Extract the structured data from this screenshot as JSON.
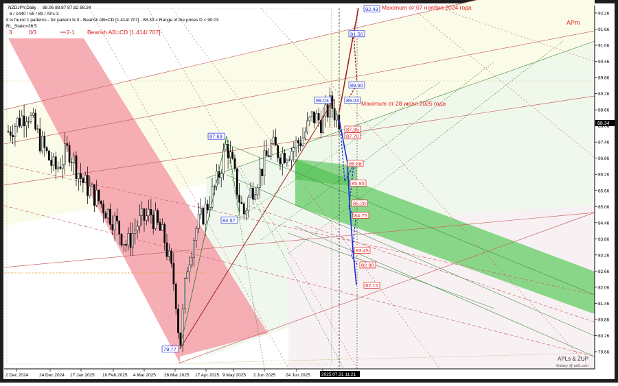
{
  "chart_data": {
    "type": "candlestick",
    "title": "NZDJPY,Daily",
    "ohlc_header": "88.06 88.87 87.82 88.34",
    "info_lines": [
      "6 / 1440 / 55 / 89 / APs-3",
      "It is found 1 patterns  -  for pattern N 0 - Bearish AB=CD [1.414/.707] - 88.33 < Range of the prices D < 90.03",
      "RL_Static=36.5"
    ],
    "pattern_counts": [
      "3",
      "0/3",
      "2-1"
    ],
    "pattern_label": "Bearish AB=CD [1.414/.707]",
    "brand": "APm",
    "watermark": [
      "APLs & ZUP",
      "Galaxy @ mt5.com"
    ],
    "price_label": "88.34",
    "y_ticks": [
      "92.26",
      "91.66",
      "91.06",
      "90.46",
      "89.86",
      "89.26",
      "88.66",
      "88.06",
      "87.46",
      "86.86",
      "86.26",
      "85.66",
      "85.06",
      "84.46",
      "83.86",
      "83.26",
      "82.66",
      "82.06",
      "81.46",
      "80.86",
      "80.26",
      "79.66"
    ],
    "ylim": [
      79.66,
      92.26
    ],
    "x_ticks": [
      "2 Dec 2024",
      "24 Dec 2024",
      "17 Jan 2025",
      "10 Feb 2025",
      "4 Mar 2025",
      "26 Mar 2025",
      "17 Apr 2025",
      "9 May 2025",
      "2 Jun 2025",
      "24 Jun 2025",
      "2025.07.31 11:21"
    ],
    "annotations": [
      {
        "text": "Maximum от 07 ноября 2024 года",
        "price": 92.43
      },
      {
        "text": "Maximum от 28 июля 2025 года",
        "price": 89.03
      }
    ],
    "pivots": [
      {
        "label": "87.69",
        "price": 87.69
      },
      {
        "label": "84.57",
        "price": 84.57
      },
      {
        "label": "79.77",
        "price": 79.77
      },
      {
        "label": "89.03",
        "price": 89.03
      }
    ],
    "target_levels_upper": [
      {
        "label": "92.43",
        "price": 92.43
      },
      {
        "label": "91.50",
        "price": 91.5
      },
      {
        "label": "89.60",
        "price": 89.6
      },
      {
        "label": "89.03",
        "price": 89.03
      }
    ],
    "target_levels_lower": [
      {
        "label": "87.95",
        "price": 87.95
      },
      {
        "label": "87.70",
        "price": 87.7
      },
      {
        "label": "86.68",
        "price": 86.68
      },
      {
        "label": "85.95",
        "price": 85.95
      },
      {
        "label": "85.20",
        "price": 85.2
      },
      {
        "label": "84.75",
        "price": 84.75
      },
      {
        "label": "83.45",
        "price": 83.45
      },
      {
        "label": "82.90",
        "price": 82.9
      },
      {
        "label": "82.15",
        "price": 82.15
      }
    ],
    "colors": {
      "red_band": "#f4a0a8",
      "green_band": "#66cc66",
      "up_arrow": "#a02020",
      "down_arrow": "#1a2bd6",
      "pivot_label": "#1a2bd6",
      "target_label": "#e02020"
    }
  }
}
